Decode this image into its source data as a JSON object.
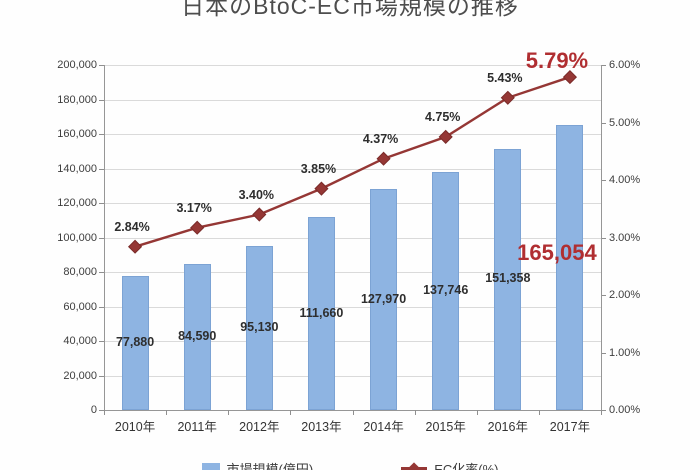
{
  "title": "日本のBtoC-EC市場規模の推移",
  "colors": {
    "bar": "#8EB4E2",
    "line": "#953735",
    "highlight": "#B02E31",
    "grid": "#DADADA",
    "axis": "#969696"
  },
  "chart_data": {
    "type": "bar",
    "subtype": "bar-line-combo",
    "title": "日本のBtoC-EC市場規模の推移",
    "categories": [
      "2010年",
      "2011年",
      "2012年",
      "2013年",
      "2014年",
      "2015年",
      "2016年",
      "2017年"
    ],
    "series": [
      {
        "name": "市場規模(億円)",
        "type": "bar",
        "axis": "left",
        "color": "#8EB4E2",
        "values": [
          77880,
          84590,
          95130,
          111660,
          127970,
          137746,
          151358,
          165054
        ],
        "labels": [
          "77,880",
          "84,590",
          "95,130",
          "111,660",
          "127,970",
          "137,746",
          "151,358",
          "165,054"
        ]
      },
      {
        "name": "EC化率(%)",
        "type": "line",
        "axis": "right",
        "color": "#953735",
        "values": [
          2.84,
          3.17,
          3.4,
          3.85,
          4.37,
          4.75,
          5.43,
          5.79
        ],
        "labels": [
          "2.84%",
          "3.17%",
          "3.40%",
          "3.85%",
          "4.37%",
          "4.75%",
          "5.43%",
          "5.79%"
        ]
      }
    ],
    "left_axis": {
      "min": 0,
      "max": 200000,
      "step": 20000,
      "tick_labels": [
        "0",
        "20,000",
        "40,000",
        "60,000",
        "80,000",
        "100,000",
        "120,000",
        "140,000",
        "160,000",
        "180,000",
        "200,000"
      ]
    },
    "right_axis": {
      "min": 0,
      "max": 6,
      "step": 1,
      "tick_labels": [
        "0.00%",
        "1.00%",
        "2.00%",
        "3.00%",
        "4.00%",
        "5.00%",
        "6.00%"
      ]
    },
    "highlight": {
      "final_bar_label": "165,054",
      "final_line_label": "5.79%"
    },
    "grid": true,
    "legend_position": "bottom"
  }
}
